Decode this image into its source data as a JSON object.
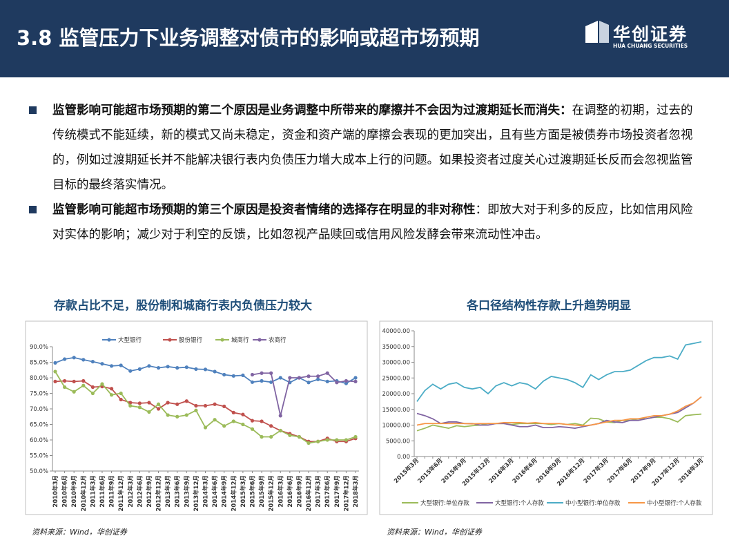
{
  "header": {
    "title": "3.8 监管压力下业务调整对债市的影响或超市场预期",
    "logo": "华创证券",
    "logo_sub": "HUA CHUANG SECURITIES"
  },
  "bullets": [
    {
      "bold": "监管影响可能超市场预期的第二个原因是业务调整中所带来的摩擦并不会因为过渡期延长而消失：",
      "text": "在调整的初期，过去的传统模式不能延续，新的模式又尚未稳定，资金和资产端的摩擦会表现的更加突出，且有些方面是被债券市场投资者忽视的，例如过渡期延长并不能解决银行表内负债压力增大成本上行的问题。如果投资者过度关心过渡期延长反而会忽视监管目标的最终落实情况。"
    },
    {
      "bold": "监管影响可能超市场预期的第三个原因是投资者情绪的选择存在明显的非对称性",
      "text": "：即放大对于利多的反应，比如信用风险对实体的影响；减少对于利空的反馈，比如忽视产品赎回或信用风险发酵会带来流动性冲击。"
    }
  ],
  "chart_data": [
    {
      "type": "line",
      "title": "存款占比不足，股份制和城商行表内负债压力较大",
      "source": "资料来源：Wind，华创证券",
      "markers": true,
      "grid": false,
      "legend": "top",
      "categories": [
        "2010年3月",
        "2010年6月",
        "2010年9月",
        "2010年12月",
        "2011年3月",
        "2011年6月",
        "2011年9月",
        "2011年12月",
        "2012年3月",
        "2012年6月",
        "2012年9月",
        "2012年12月",
        "2013年3月",
        "2013年6月",
        "2013年9月",
        "2013年12月",
        "2014年3月",
        "2014年6月",
        "2014年9月",
        "2014年12月",
        "2015年3月",
        "2015年6月",
        "2015年9月",
        "2015年12月",
        "2016年3月",
        "2016年6月",
        "2016年9月",
        "2016年12月",
        "2017年3月",
        "2017年6月",
        "2017年9月",
        "2017年12月",
        "2018年3月"
      ],
      "ylim": [
        50,
        90
      ],
      "yticks": [
        {
          "value": 50,
          "label": "50.0%"
        },
        {
          "value": 55,
          "label": "55.0%"
        },
        {
          "value": 60,
          "label": "60.0%"
        },
        {
          "value": 65,
          "label": "65.0%"
        },
        {
          "value": 70,
          "label": "70.0%"
        },
        {
          "value": 75,
          "label": "75.0%"
        },
        {
          "value": 80,
          "label": "80.0%"
        },
        {
          "value": 85,
          "label": "85.0%"
        },
        {
          "value": 90,
          "label": "90.0%"
        }
      ],
      "series": [
        {
          "name": "大型银行",
          "color": "#4f81bd",
          "values": [
            84.8,
            86.0,
            86.5,
            85.8,
            85.2,
            84.5,
            83.8,
            84.0,
            82.2,
            82.8,
            83.8,
            83.2,
            83.6,
            83.2,
            83.4,
            82.8,
            82.7,
            82.0,
            81.0,
            80.6,
            80.8,
            78.6,
            79.0,
            78.6,
            80.0,
            78.5,
            80.0,
            78.5,
            79.5,
            78.8,
            79.0,
            78.2,
            80.0
          ]
        },
        {
          "name": "股份银行",
          "color": "#c0504d",
          "values": [
            78.8,
            79.0,
            78.8,
            79.0,
            77.0,
            77.2,
            76.5,
            73.0,
            72.0,
            71.8,
            72.0,
            70.0,
            72.0,
            71.5,
            72.5,
            71.0,
            71.0,
            71.5,
            70.8,
            68.8,
            68.2,
            66.2,
            66.0,
            64.5,
            63.0,
            62.0,
            61.0,
            59.5,
            59.5,
            60.5,
            59.5,
            59.5,
            60.5
          ]
        },
        {
          "name": "城商行",
          "color": "#9bbb59",
          "values": [
            82.0,
            77.0,
            75.5,
            77.5,
            75.0,
            78.0,
            74.5,
            75.0,
            71.0,
            70.5,
            69.0,
            71.5,
            68.0,
            67.5,
            68.0,
            69.5,
            64.0,
            66.5,
            64.5,
            66.0,
            65.0,
            63.5,
            61.0,
            61.0,
            63.0,
            61.5,
            61.0,
            59.0,
            59.5,
            60.0,
            60.0,
            60.0,
            61.0
          ]
        },
        {
          "name": "农商行",
          "color": "#8064a2",
          "values": [
            null,
            null,
            null,
            null,
            null,
            null,
            null,
            null,
            null,
            null,
            null,
            null,
            null,
            null,
            null,
            null,
            null,
            null,
            null,
            null,
            null,
            81.0,
            81.5,
            81.5,
            67.8,
            80.0,
            80.0,
            80.5,
            80.5,
            81.5,
            78.5,
            79.0,
            78.8
          ]
        }
      ]
    },
    {
      "type": "line",
      "title": "各口径结构性存款上升趋势明显",
      "source": "资料来源：Wind，华创证券",
      "markers": false,
      "grid": false,
      "legend": "bottom",
      "categories": [
        "2015年3月",
        null,
        null,
        "2015年6月",
        null,
        null,
        "2015年9月",
        null,
        null,
        "2015年12月",
        null,
        null,
        "2016年3月",
        null,
        null,
        "2016年6月",
        null,
        null,
        "2016年9月",
        null,
        null,
        "2016年12月",
        null,
        null,
        "2017年3月",
        null,
        null,
        "2017年6月",
        null,
        null,
        "2017年9月",
        null,
        null,
        "2017年12月",
        null,
        null,
        "2018年3月"
      ],
      "ylim": [
        0,
        40000
      ],
      "yticks": [
        {
          "value": 0,
          "label": "0.00"
        },
        {
          "value": 5000,
          "label": "5000.00"
        },
        {
          "value": 10000,
          "label": "10000.00"
        },
        {
          "value": 15000,
          "label": "15000.00"
        },
        {
          "value": 20000,
          "label": "20000.00"
        },
        {
          "value": 25000,
          "label": "25000.00"
        },
        {
          "value": 30000,
          "label": "30000.00"
        },
        {
          "value": 35000,
          "label": "35000.00"
        },
        {
          "value": 40000,
          "label": "40000.00"
        }
      ],
      "series": [
        {
          "name": "大型银行:单位存款",
          "color": "#9bbb59",
          "values": [
            8200,
            9000,
            10000,
            9500,
            9000,
            9800,
            9500,
            9800,
            10000,
            10500,
            10500,
            10500,
            10200,
            10500,
            10500,
            10500,
            10500,
            10200,
            10500,
            10200,
            10500,
            10000,
            12200,
            12000,
            11000,
            10800,
            11500,
            11500,
            12000,
            12000,
            12500,
            12500,
            12000,
            11000,
            13000,
            13300,
            13500
          ]
        },
        {
          "name": "大型银行:个人存款",
          "color": "#8064a2",
          "values": [
            13700,
            13000,
            12000,
            10500,
            11000,
            11000,
            10500,
            10500,
            10000,
            10000,
            10500,
            10500,
            10000,
            9500,
            9500,
            10000,
            9200,
            9200,
            9500,
            9300,
            9000,
            9500,
            10000,
            10500,
            11500,
            11000,
            10800,
            11500,
            11500,
            12000,
            12500,
            13000,
            13500,
            14000,
            15500,
            17000,
            19000
          ]
        },
        {
          "name": "中小型银行:单位存款",
          "color": "#4bacc6",
          "values": [
            17500,
            21000,
            23000,
            21500,
            23000,
            23500,
            22000,
            21500,
            22000,
            20000,
            22500,
            23500,
            22500,
            23500,
            23000,
            21500,
            24000,
            25500,
            25000,
            24500,
            23500,
            22000,
            26000,
            24500,
            26000,
            27000,
            27000,
            27500,
            29000,
            30500,
            31500,
            31500,
            32000,
            31000,
            35500,
            36000,
            36500
          ]
        },
        {
          "name": "中小型银行:个人存款",
          "color": "#f79646",
          "values": [
            10000,
            10500,
            10500,
            10500,
            10500,
            10500,
            10500,
            10400,
            10500,
            10500,
            10500,
            10800,
            10800,
            10800,
            10600,
            10800,
            10500,
            10500,
            10500,
            10200,
            10000,
            9800,
            10000,
            10500,
            11000,
            11500,
            11500,
            12000,
            12000,
            12500,
            13000,
            13000,
            13500,
            14500,
            16000,
            17000,
            19000
          ]
        }
      ]
    }
  ]
}
